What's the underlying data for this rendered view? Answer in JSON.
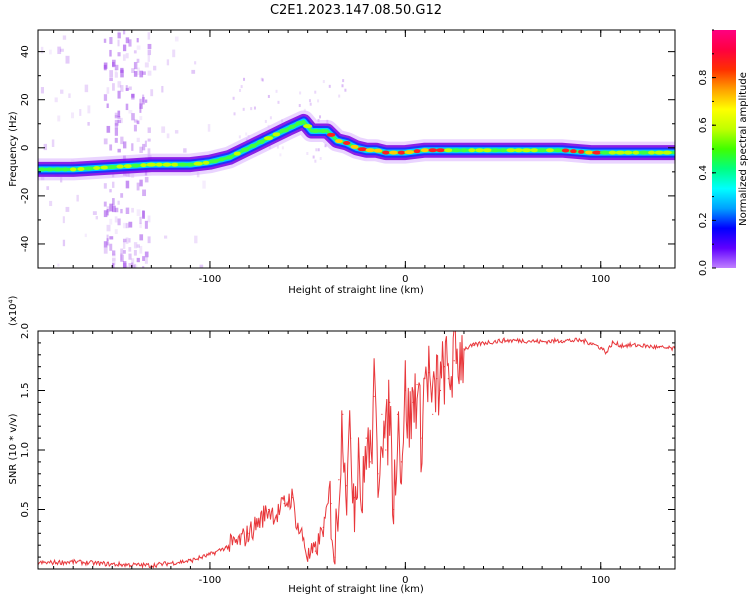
{
  "title": "C2E1.2023.147.08.50.G12",
  "colors": {
    "snr_line": "#e8373b",
    "ridge_outer": "#7a00e0",
    "ridge_mid": "#2030ff",
    "ridge_core": "#00d0ff",
    "ridge_hot": "#40ff40",
    "ridge_peak": "#ff2020",
    "noise_purple": "#9b40e8"
  },
  "chart_data": [
    {
      "type": "heatmap",
      "xlabel": "Height of straight line (km)",
      "ylabel": "Frequency (Hz)",
      "xlim": [
        -188,
        138
      ],
      "ylim": [
        -50,
        49
      ],
      "xticks": [
        -100,
        0,
        100
      ],
      "yticks": [
        -40,
        -20,
        0,
        20,
        40
      ],
      "colorbar": {
        "label": "Normalized spectral amplitude",
        "range": [
          0,
          1
        ],
        "ticks": [
          "0.0",
          "0.2",
          "0.4",
          "0.6",
          "0.8"
        ],
        "colormap": [
          "#c080ff",
          "#6000ff",
          "#0000ff",
          "#00a0ff",
          "#00ffff",
          "#00ff80",
          "#40ff00",
          "#c0ff00",
          "#ffff00",
          "#ffa000",
          "#ff3000",
          "#ff0040",
          "#ff0080"
        ]
      },
      "ridge": {
        "x": [
          -188,
          -170,
          -150,
          -130,
          -110,
          -100,
          -90,
          -80,
          -70,
          -60,
          -52,
          -48,
          -44,
          -40,
          -35,
          -30,
          -25,
          -20,
          -15,
          -10,
          -5,
          0,
          10,
          20,
          40,
          60,
          80,
          95,
          100,
          110,
          120,
          138
        ],
        "frequency": [
          -9,
          -9,
          -8,
          -7,
          -7,
          -6,
          -4,
          0,
          4,
          8,
          11,
          7,
          7,
          7,
          3,
          2,
          0,
          -1,
          -1,
          -2,
          -2,
          -2,
          -1,
          -1,
          -1,
          -1,
          -1,
          -2,
          -2,
          -2,
          -2,
          -2
        ]
      }
    },
    {
      "type": "line",
      "xlabel": "Height of straight line (km)",
      "ylabel": "SNR (10 * v/v)",
      "y_multiplier": "(x10⁴)",
      "xlim": [
        -188,
        138
      ],
      "ylim": [
        0,
        2.0
      ],
      "xticks": [
        -100,
        0,
        100
      ],
      "yticks": [
        0.5,
        1.0,
        1.5,
        2.0
      ],
      "series": [
        {
          "x": [
            -188,
            -170,
            -150,
            -130,
            -110,
            -100,
            -92,
            -86,
            -80,
            -75,
            -70,
            -66,
            -62,
            -58,
            -55,
            -52,
            -50,
            -46,
            -42,
            -38,
            -36,
            -34,
            -32,
            -30,
            -28,
            -26,
            -24,
            -22,
            -20,
            -18,
            -16,
            -14,
            -12,
            -10,
            -8,
            -6,
            -4,
            -2,
            0,
            2,
            4,
            6,
            8,
            10,
            12,
            14,
            16,
            18,
            20,
            22,
            25,
            30,
            35,
            40,
            50,
            60,
            70,
            80,
            90,
            95,
            100,
            103,
            106,
            110,
            120,
            130,
            138
          ],
          "values": [
            0.05,
            0.06,
            0.04,
            0.03,
            0.07,
            0.12,
            0.18,
            0.22,
            0.3,
            0.4,
            0.5,
            0.45,
            0.55,
            0.6,
            0.35,
            0.25,
            0.1,
            0.15,
            0.35,
            0.55,
            0.1,
            0.75,
            1.3,
            0.7,
            1.1,
            0.6,
            1.05,
            0.5,
            1.1,
            0.9,
            1.45,
            0.8,
            1.3,
            1.0,
            1.4,
            0.5,
            1.3,
            0.9,
            1.5,
            1.2,
            1.4,
            1.55,
            1.1,
            1.6,
            1.65,
            1.3,
            1.6,
            1.5,
            1.7,
            1.6,
            1.75,
            1.85,
            1.88,
            1.9,
            1.92,
            1.92,
            1.91,
            1.92,
            1.92,
            1.9,
            1.86,
            1.82,
            1.9,
            1.88,
            1.88,
            1.86,
            1.85
          ]
        }
      ]
    }
  ]
}
